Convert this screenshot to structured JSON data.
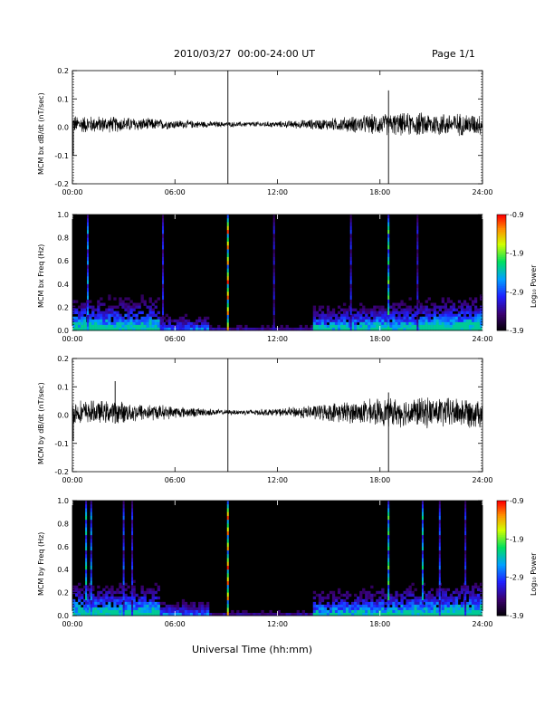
{
  "header": {
    "title": "2010/03/27  00:00-24:00 UT",
    "page": "Page 1/1"
  },
  "xaxis_title": "Universal Time (hh:mm)",
  "colorbar": {
    "label": "Log₁₀ Power",
    "ticks": [
      "-0.9",
      "-1.9",
      "-2.9",
      "-3.9"
    ],
    "range": [
      -3.9,
      -0.9
    ]
  },
  "colors": {
    "spectrogram_background": "#000000",
    "trace": "#000000"
  },
  "chart_data": [
    {
      "type": "line",
      "ylabel": "MCM bx dB/dt (nT/sec)",
      "xticks": [
        "00:00",
        "06:00",
        "12:00",
        "18:00",
        "24:00"
      ],
      "xlim": [
        0,
        24
      ],
      "ylim": [
        -0.2,
        0.2
      ],
      "yticks": [
        "0.2",
        "0.1",
        "0.0",
        "-0.1",
        "-0.2"
      ],
      "envelope": [
        {
          "t": 0,
          "amp": 0.03
        },
        {
          "t": 3,
          "amp": 0.025
        },
        {
          "t": 6,
          "amp": 0.015
        },
        {
          "t": 9,
          "amp": 0.008
        },
        {
          "t": 12,
          "amp": 0.01
        },
        {
          "t": 15,
          "amp": 0.02
        },
        {
          "t": 18,
          "amp": 0.035
        },
        {
          "t": 21,
          "amp": 0.04
        },
        {
          "t": 24,
          "amp": 0.035
        }
      ],
      "spikes": [
        {
          "t": 9.1,
          "min": -0.2,
          "max": 0.2
        },
        {
          "t": 18.5,
          "min": -0.2,
          "max": 0.13
        },
        {
          "t": 0.05,
          "min": -0.1,
          "max": 0.02
        }
      ]
    },
    {
      "type": "heatmap",
      "ylabel": "MCM bx Freq (Hz)",
      "xticks": [
        "00:00",
        "06:00",
        "12:00",
        "18:00",
        "24:00"
      ],
      "xlim": [
        0,
        24
      ],
      "ylim": [
        0,
        1.0
      ],
      "yticks": [
        "1.0",
        "0.8",
        "0.6",
        "0.4",
        "0.2",
        "0.0"
      ],
      "vertical_bands": [
        {
          "t": 9.1,
          "intensity": 1.0
        },
        {
          "t": 18.5,
          "intensity": 0.7
        },
        {
          "t": 0.9,
          "intensity": 0.5
        },
        {
          "t": 5.3,
          "intensity": 0.35
        },
        {
          "t": 11.8,
          "intensity": 0.3
        },
        {
          "t": 16.3,
          "intensity": 0.35
        },
        {
          "t": 20.2,
          "intensity": 0.3
        }
      ]
    },
    {
      "type": "line",
      "ylabel": "MCM by dB/dt (nT/sec)",
      "xticks": [
        "00:00",
        "06:00",
        "12:00",
        "18:00",
        "24:00"
      ],
      "xlim": [
        0,
        24
      ],
      "ylim": [
        -0.2,
        0.2
      ],
      "yticks": [
        "0.2",
        "0.1",
        "0.0",
        "-0.1",
        "-0.2"
      ],
      "envelope": [
        {
          "t": 0,
          "amp": 0.04
        },
        {
          "t": 3,
          "amp": 0.035
        },
        {
          "t": 6,
          "amp": 0.02
        },
        {
          "t": 9,
          "amp": 0.008
        },
        {
          "t": 12,
          "amp": 0.012
        },
        {
          "t": 15,
          "amp": 0.03
        },
        {
          "t": 18,
          "amp": 0.045
        },
        {
          "t": 21,
          "amp": 0.05
        },
        {
          "t": 24,
          "amp": 0.05
        }
      ],
      "spikes": [
        {
          "t": 9.1,
          "min": -0.2,
          "max": 0.2
        },
        {
          "t": 18.5,
          "min": -0.2,
          "max": 0.08
        },
        {
          "t": 2.5,
          "min": -0.03,
          "max": 0.12
        },
        {
          "t": 0.05,
          "min": -0.09,
          "max": 0.02
        }
      ]
    },
    {
      "type": "heatmap",
      "ylabel": "MCM by Freq (Hz)",
      "xticks": [
        "00:00",
        "06:00",
        "12:00",
        "18:00",
        "24:00"
      ],
      "xlim": [
        0,
        24
      ],
      "ylim": [
        0,
        1.0
      ],
      "yticks": [
        "1.0",
        "0.8",
        "0.6",
        "0.4",
        "0.2",
        "0.0"
      ],
      "vertical_bands": [
        {
          "t": 9.1,
          "intensity": 1.0
        },
        {
          "t": 18.5,
          "intensity": 0.7
        },
        {
          "t": 0.8,
          "intensity": 0.6
        },
        {
          "t": 1.1,
          "intensity": 0.5
        },
        {
          "t": 3.0,
          "intensity": 0.4
        },
        {
          "t": 3.5,
          "intensity": 0.35
        },
        {
          "t": 20.5,
          "intensity": 0.6
        },
        {
          "t": 21.5,
          "intensity": 0.4
        },
        {
          "t": 23.0,
          "intensity": 0.35
        }
      ]
    }
  ]
}
